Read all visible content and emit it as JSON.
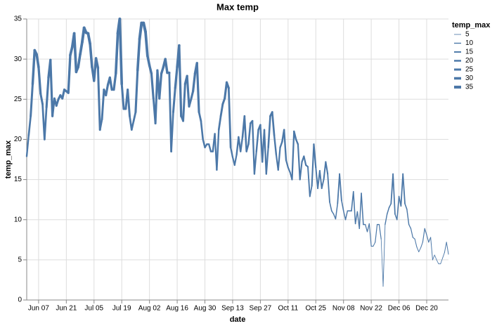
{
  "chart_data": {
    "type": "trail",
    "title": "Max temp",
    "x_label": "date",
    "y_label": "temp_max",
    "x": [
      "Jun 01",
      "Jun 02",
      "Jun 03",
      "Jun 04",
      "Jun 05",
      "Jun 06",
      "Jun 07",
      "Jun 08",
      "Jun 09",
      "Jun 10",
      "Jun 11",
      "Jun 12",
      "Jun 13",
      "Jun 14",
      "Jun 15",
      "Jun 16",
      "Jun 17",
      "Jun 18",
      "Jun 19",
      "Jun 20",
      "Jun 21",
      "Jun 22",
      "Jun 23",
      "Jun 24",
      "Jun 25",
      "Jun 26",
      "Jun 27",
      "Jun 28",
      "Jun 29",
      "Jun 30",
      "Jul 01",
      "Jul 02",
      "Jul 03",
      "Jul 04",
      "Jul 05",
      "Jul 06",
      "Jul 07",
      "Jul 08",
      "Jul 09",
      "Jul 10",
      "Jul 11",
      "Jul 12",
      "Jul 13",
      "Jul 14",
      "Jul 15",
      "Jul 16",
      "Jul 17",
      "Jul 18",
      "Jul 19",
      "Jul 20",
      "Jul 21",
      "Jul 22",
      "Jul 23",
      "Jul 24",
      "Jul 25",
      "Jul 26",
      "Jul 27",
      "Jul 28",
      "Jul 29",
      "Jul 30",
      "Jul 31",
      "Aug 01",
      "Aug 02",
      "Aug 03",
      "Aug 04",
      "Aug 05",
      "Aug 06",
      "Aug 07",
      "Aug 08",
      "Aug 09",
      "Aug 10",
      "Aug 11",
      "Aug 12",
      "Aug 13",
      "Aug 14",
      "Aug 15",
      "Aug 16",
      "Aug 17",
      "Aug 18",
      "Aug 19",
      "Aug 20",
      "Aug 21",
      "Aug 22",
      "Aug 23",
      "Aug 24",
      "Aug 25",
      "Aug 26",
      "Aug 27",
      "Aug 28",
      "Aug 29",
      "Aug 30",
      "Aug 31",
      "Sep 01",
      "Sep 02",
      "Sep 03",
      "Sep 04",
      "Sep 05",
      "Sep 06",
      "Sep 07",
      "Sep 08",
      "Sep 09",
      "Sep 10",
      "Sep 11",
      "Sep 12",
      "Sep 13",
      "Sep 14",
      "Sep 15",
      "Sep 16",
      "Sep 17",
      "Sep 18",
      "Sep 19",
      "Sep 20",
      "Sep 21",
      "Sep 22",
      "Sep 23",
      "Sep 24",
      "Sep 25",
      "Sep 26",
      "Sep 27",
      "Sep 28",
      "Sep 29",
      "Sep 30",
      "Oct 01",
      "Oct 02",
      "Oct 03",
      "Oct 04",
      "Oct 05",
      "Oct 06",
      "Oct 07",
      "Oct 08",
      "Oct 09",
      "Oct 10",
      "Oct 11",
      "Oct 12",
      "Oct 13",
      "Oct 14",
      "Oct 15",
      "Oct 16",
      "Oct 17",
      "Oct 18",
      "Oct 19",
      "Oct 20",
      "Oct 21",
      "Oct 22",
      "Oct 23",
      "Oct 24",
      "Oct 25",
      "Oct 26",
      "Oct 27",
      "Oct 28",
      "Oct 29",
      "Oct 30",
      "Oct 31",
      "Nov 01",
      "Nov 02",
      "Nov 03",
      "Nov 04",
      "Nov 05",
      "Nov 06",
      "Nov 07",
      "Nov 08",
      "Nov 09",
      "Nov 10",
      "Nov 11",
      "Nov 12",
      "Nov 13",
      "Nov 14",
      "Nov 15",
      "Nov 16",
      "Nov 17",
      "Nov 18",
      "Nov 19",
      "Nov 20",
      "Nov 21",
      "Nov 22",
      "Nov 23",
      "Nov 24",
      "Nov 25",
      "Nov 26",
      "Nov 27",
      "Nov 28",
      "Nov 29",
      "Nov 30",
      "Dec 01",
      "Dec 02",
      "Dec 03",
      "Dec 04",
      "Dec 05",
      "Dec 06",
      "Dec 07",
      "Dec 08",
      "Dec 09",
      "Dec 10",
      "Dec 11",
      "Dec 12",
      "Dec 13",
      "Dec 14",
      "Dec 15",
      "Dec 16",
      "Dec 17",
      "Dec 18",
      "Dec 19",
      "Dec 20",
      "Dec 21",
      "Dec 22",
      "Dec 23",
      "Dec 24",
      "Dec 25",
      "Dec 26",
      "Dec 27",
      "Dec 28",
      "Dec 29",
      "Dec 30",
      "Dec 31"
    ],
    "values": [
      17.9,
      20.5,
      22.9,
      26.9,
      31.1,
      30.6,
      29,
      25.7,
      24.4,
      20,
      24,
      27.7,
      29.9,
      22.9,
      25.1,
      24.2,
      25,
      25.5,
      25.1,
      26.2,
      26.0,
      25.8,
      30.5,
      31.5,
      33.2,
      28.4,
      29,
      30.6,
      32.1,
      33.9,
      33.3,
      33.2,
      31.9,
      29,
      27.3,
      30.1,
      28.9,
      21.2,
      22.5,
      26.2,
      25.5,
      26.8,
      27.7,
      26.2,
      26.2,
      28.2,
      33.2,
      35,
      26.9,
      23.8,
      23.8,
      26.2,
      22.9,
      21.2,
      22.3,
      23.4,
      28.6,
      32.5,
      34.5,
      34.5,
      33.4,
      30.4,
      29.2,
      28.2,
      25.1,
      22,
      28.6,
      25.1,
      28.2,
      29,
      30,
      28.3,
      28.3,
      18.5,
      23.4,
      26.4,
      29,
      31.7,
      22.9,
      22.3,
      26.9,
      27.9,
      24.1,
      25,
      26,
      28.2,
      29.5,
      23.4,
      22.3,
      20,
      19,
      19.4,
      19.4,
      18.5,
      18.5,
      20.7,
      16.2,
      21.2,
      22.9,
      24.4,
      25.1,
      27.1,
      26.4,
      19,
      17.8,
      16.8,
      18.1,
      20.3,
      18.5,
      20.3,
      22.9,
      18.5,
      19.4,
      22,
      22.3,
      15.7,
      18.5,
      21.2,
      21.8,
      17.2,
      21.2,
      15.7,
      19,
      22.9,
      23.4,
      20.5,
      18.1,
      16.2,
      19,
      19.7,
      21.2,
      17.4,
      16.5,
      15.9,
      15,
      21,
      20,
      19.4,
      15,
      17.2,
      17.9,
      16.8,
      16.6,
      12.9,
      14.2,
      19.4,
      16.5,
      13.9,
      16.1,
      13.9,
      15,
      17.2,
      15.7,
      12.2,
      11.1,
      10.7,
      10.1,
      12,
      15.7,
      12.4,
      11.1,
      10,
      11.1,
      11.1,
      11.1,
      13.5,
      9.5,
      11,
      8.9,
      13.3,
      9.4,
      9.4,
      8.5,
      9.5,
      6.7,
      6.7,
      7.2,
      9.4,
      9.4,
      7.6,
      1.7,
      9.4,
      10.7,
      11.5,
      12,
      15.7,
      10.7,
      10,
      12.9,
      11.7,
      15.7,
      12,
      11.3,
      9.4,
      8.9,
      7.8,
      7.6,
      6.6,
      6,
      6.5,
      7.2,
      8.9,
      8.1,
      7.2,
      7.8,
      5,
      5.6,
      5,
      4.5,
      4.5,
      5.2,
      5.9,
      7.2,
      5.7
    ],
    "color": "#4c78a8",
    "xlim": [
      "Jun 01",
      "Dec 31"
    ],
    "xticks": [
      "Jun 07",
      "Jun 21",
      "Jul 05",
      "Jul 19",
      "Aug 02",
      "Aug 16",
      "Aug 30",
      "Sep 13",
      "Sep 27",
      "Oct 11",
      "Oct 25",
      "Nov 08",
      "Nov 22",
      "Dec 06",
      "Dec 20"
    ],
    "ylim": [
      0,
      35
    ],
    "yticks": [
      0,
      5,
      10,
      15,
      20,
      25,
      30,
      35
    ],
    "grid": true,
    "legend_title": "temp_max",
    "size_legend": [
      5,
      10,
      15,
      20,
      25,
      30,
      35
    ]
  }
}
